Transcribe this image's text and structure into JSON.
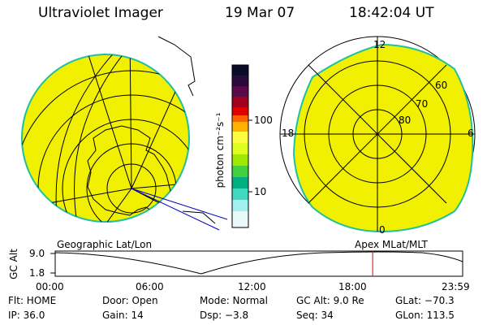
{
  "header": {
    "title": "Ultraviolet Imager",
    "date": "19 Mar 07",
    "time": "18:42:04 UT"
  },
  "colorbar": {
    "label": "photon cm⁻²s⁻¹",
    "tick_high": "100",
    "tick_low": "10",
    "colors": [
      "#0a0a2a",
      "#2a0a3a",
      "#5a0a4a",
      "#a00020",
      "#e00000",
      "#ff6000",
      "#ffb000",
      "#ffff40",
      "#e0ff20",
      "#a0e800",
      "#40d040",
      "#00b080",
      "#40d8c0",
      "#a0f0f0",
      "#e8f8f8"
    ]
  },
  "left_map": {
    "label": "Geographic Lat/Lon",
    "fill_color": "#f0f000",
    "edge_color": "#20c0a0"
  },
  "right_map": {
    "label": "Apex MLat/MLT",
    "mlt_labels": {
      "top": "12",
      "left": "18",
      "right": "6",
      "bottom": "0"
    },
    "lat_labels": [
      "60",
      "70",
      "80"
    ]
  },
  "altitude_plot": {
    "ylabel": "GC Alt",
    "yticks": [
      "9.0",
      "1.8"
    ],
    "xticks": [
      "00:00",
      "06:00",
      "12:00",
      "18:00",
      "23:59"
    ],
    "marker_hour": 18.7,
    "marker_color": "#e00000"
  },
  "status": {
    "flt": "Flt: HOME",
    "ip": "IP: 36.0",
    "door": "Door: Open",
    "gain": "Gain: 14",
    "mode": "Mode: Normal",
    "dsp": "Dsp:  −3.8",
    "gc_alt": "GC Alt: 9.0 Re",
    "seq": "Seq: 34",
    "glat": "GLat: −70.3",
    "glon": "GLon: 113.5"
  }
}
